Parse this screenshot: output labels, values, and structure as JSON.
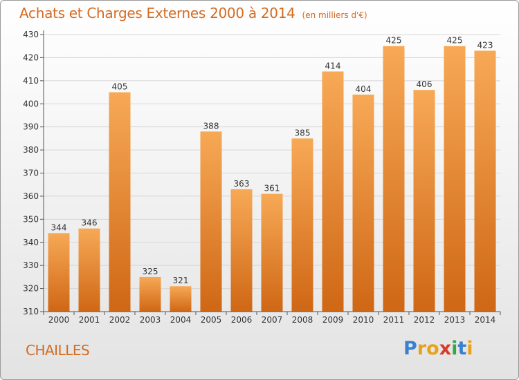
{
  "title": "Achats et Charges Externes 2000 à 2014",
  "unit": "(en milliers d'€)",
  "commune": "CHAILLES",
  "logo": {
    "letters": [
      "P",
      "r",
      "o",
      "x",
      "i",
      "t",
      "i"
    ],
    "colors": [
      "#3a7fd0",
      "#e8a21a",
      "#e8a21a",
      "#d63b2a",
      "#2fa84a",
      "#3a7fd0",
      "#e8a21a"
    ]
  },
  "colors": {
    "accent": "#d46a1f",
    "bar_top": "#f7a956",
    "bar_bottom": "#cf6715",
    "grid": "#d6d6d6"
  },
  "chart_data": {
    "type": "bar",
    "categories": [
      "2000",
      "2001",
      "2002",
      "2003",
      "2004",
      "2005",
      "2006",
      "2007",
      "2008",
      "2009",
      "2010",
      "2011",
      "2012",
      "2013",
      "2014"
    ],
    "values": [
      344,
      346,
      405,
      325,
      321,
      388,
      363,
      361,
      385,
      414,
      404,
      425,
      406,
      425,
      423
    ],
    "yticks": [
      310,
      320,
      330,
      340,
      350,
      360,
      370,
      380,
      390,
      400,
      410,
      420,
      430
    ],
    "ylim": [
      310,
      430
    ],
    "grid": true
  }
}
